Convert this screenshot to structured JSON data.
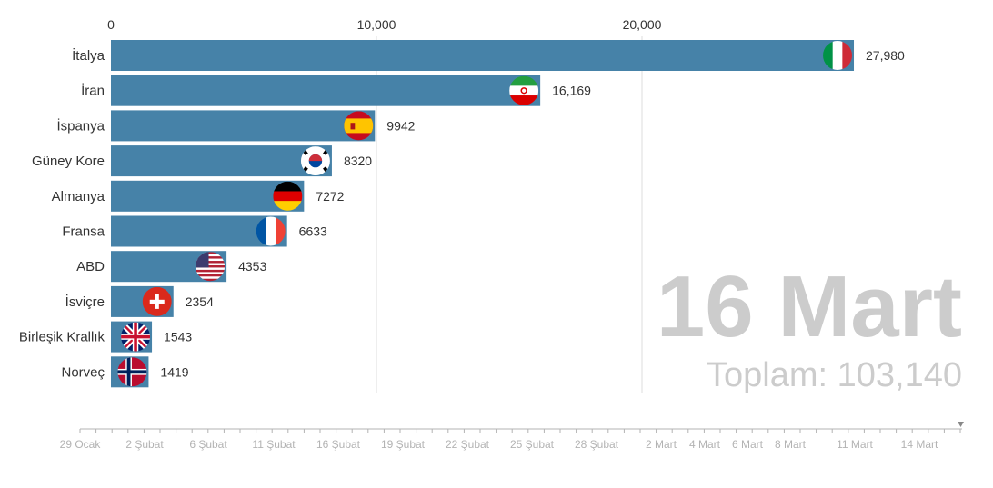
{
  "chart_data": {
    "type": "bar",
    "orientation": "horizontal",
    "categories": [
      "İtalya",
      "İran",
      "İspanya",
      "Güney Kore",
      "Almanya",
      "Fransa",
      "ABD",
      "İsviçre",
      "Birleşik Krallık",
      "Norveç"
    ],
    "values": [
      27980,
      16169,
      9942,
      8320,
      7272,
      6633,
      4353,
      2354,
      1543,
      1419
    ],
    "value_labels": [
      "27,980",
      "16,169",
      "9942",
      "8320",
      "7272",
      "6633",
      "4353",
      "2354",
      "1543",
      "1419"
    ],
    "flags": [
      "italy-flag",
      "iran-flag",
      "spain-flag",
      "south-korea-flag",
      "germany-flag",
      "france-flag",
      "usa-flag",
      "switzerland-flag",
      "uk-flag",
      "norway-flag"
    ],
    "xlim": [
      0,
      28500
    ],
    "xticks": [
      0,
      10000,
      20000
    ],
    "xtick_labels": [
      "0",
      "10,000",
      "20,000"
    ],
    "grid": true,
    "bar_color": "#4682a8",
    "date_label": "16 Mart",
    "total_label": "Toplam: 103,140"
  },
  "timeline": {
    "labels": [
      "29 Ocak",
      "2 Şubat",
      "6 Şubat",
      "11 Şubat",
      "16 Şubat",
      "19 Şubat",
      "22 Şubat",
      "25 Şubat",
      "28 Şubat",
      "2 Mart",
      "4 Mart",
      "6 Mart",
      "8 Mart",
      "11 Mart",
      "14 Mart"
    ],
    "color": "#b3b3b3"
  }
}
